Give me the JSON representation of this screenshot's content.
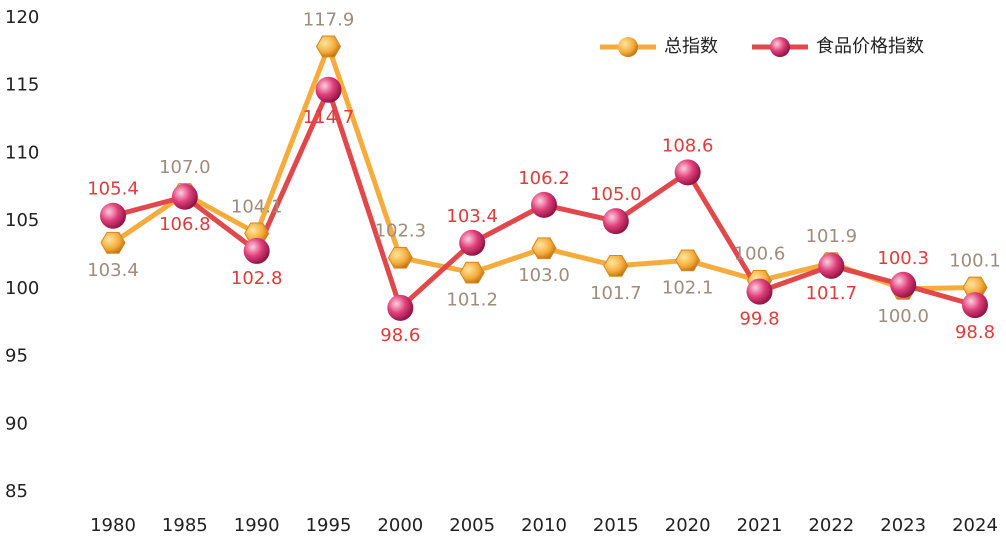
{
  "chart_data": {
    "type": "line",
    "categories": [
      "1980",
      "1985",
      "1990",
      "1995",
      "2000",
      "2005",
      "2010",
      "2015",
      "2020",
      "2021",
      "2022",
      "2023",
      "2024"
    ],
    "series": [
      {
        "name": "总指数",
        "color": "#f5ac3c",
        "values": [
          103.4,
          107.0,
          104.1,
          117.9,
          102.3,
          101.2,
          103.0,
          101.7,
          102.1,
          100.6,
          101.9,
          100.0,
          100.1
        ],
        "value_labels": [
          "103.4",
          "107.0",
          "104.1",
          "117.9",
          "102.3",
          "101.2",
          "103.0",
          "101.7",
          "102.1",
          "100.6",
          "101.9",
          "100.0",
          "100.1"
        ]
      },
      {
        "name": "食品价格指数",
        "color": "#e0484c",
        "values": [
          105.4,
          106.8,
          102.8,
          114.7,
          98.6,
          103.4,
          106.2,
          105.0,
          108.6,
          99.8,
          101.7,
          100.3,
          98.8
        ],
        "value_labels": [
          "105.4",
          "106.8",
          "102.8",
          "114.7",
          "98.6",
          "103.4",
          "106.2",
          "105.0",
          "108.6",
          "99.8",
          "101.7",
          "100.3",
          "98.8"
        ]
      }
    ],
    "ylim": [
      85,
      120
    ],
    "yticks": [
      85,
      90,
      95,
      100,
      105,
      110,
      115,
      120
    ],
    "grid": false,
    "legend": "top-right"
  }
}
